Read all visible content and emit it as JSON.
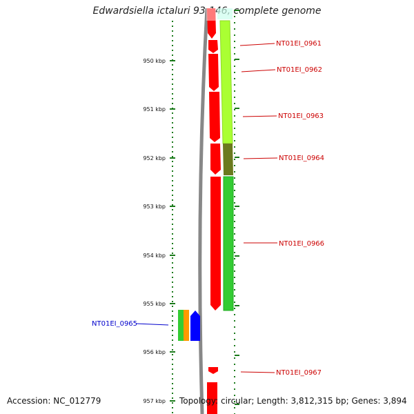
{
  "title": "Edwardsiella ictaluri 93-146, complete genome",
  "footer": {
    "accession": "Accession: NC_012779",
    "topology": "Topology: circular; Length: 3,812,315 bp; Genes: 3,894"
  },
  "ruler_labels": [
    "950 kbp",
    "951 kbp",
    "952 kbp",
    "953 kbp",
    "954 kbp",
    "955 kbp",
    "956 kbp",
    "957 kbp"
  ],
  "genes": [
    {
      "name": "NT01EI_0961",
      "color": "#cc0000"
    },
    {
      "name": "NT01EI_0962",
      "color": "#cc0000"
    },
    {
      "name": "NT01EI_0963",
      "color": "#cc0000"
    },
    {
      "name": "NT01EI_0964",
      "color": "#cc0000"
    },
    {
      "name": "NT01EI_0966",
      "color": "#cc0000"
    },
    {
      "name": "NT01EI_0965",
      "color": "#0000cc"
    },
    {
      "name": "NT01EI_0967",
      "color": "#cc0000"
    }
  ],
  "colors": {
    "backbone": "#888888",
    "forward_strand": "#ff0000",
    "reverse_strand": "#0000ff",
    "track_lime": "#aaff33",
    "track_olive": "#6b7a1e",
    "track_green": "#33cc33",
    "track_orange": "#ff9900",
    "tick": "#1a7a1a"
  }
}
